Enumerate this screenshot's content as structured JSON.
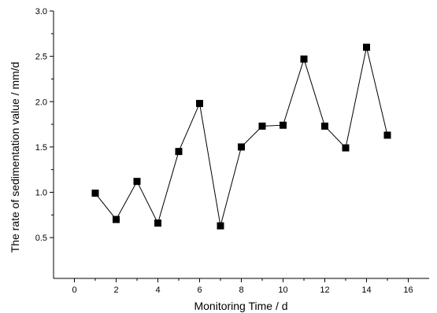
{
  "chart_data": {
    "type": "line",
    "title": "",
    "xlabel": "Monitoring Time / d",
    "ylabel": "The rate of sedimentation value / mm/d",
    "xlim": [
      -1,
      17
    ],
    "ylim": [
      0.05,
      3.0
    ],
    "xticks": [
      0,
      2,
      4,
      6,
      8,
      10,
      12,
      14,
      16
    ],
    "xtick_labels": [
      "0",
      "2",
      "4",
      "6",
      "8",
      "10",
      "12",
      "14",
      "16"
    ],
    "yticks": [
      0.5,
      1.0,
      1.5,
      2.0,
      2.5,
      3.0
    ],
    "ytick_labels": [
      "0.5",
      "1.0",
      "1.5",
      "2.0",
      "2.5",
      "3.0"
    ],
    "grid": false,
    "marker": "square",
    "series": [
      {
        "x": [
          1,
          2,
          3,
          4,
          5,
          6,
          7,
          8,
          9,
          10,
          11,
          12,
          13,
          14,
          15
        ],
        "y": [
          0.99,
          0.7,
          1.12,
          0.66,
          1.45,
          1.98,
          0.63,
          1.5,
          1.73,
          1.74,
          2.47,
          1.73,
          1.49,
          2.6,
          1.63
        ]
      }
    ],
    "colors": {
      "line": "#000000",
      "marker": "#000000",
      "axis": "#000000"
    }
  }
}
